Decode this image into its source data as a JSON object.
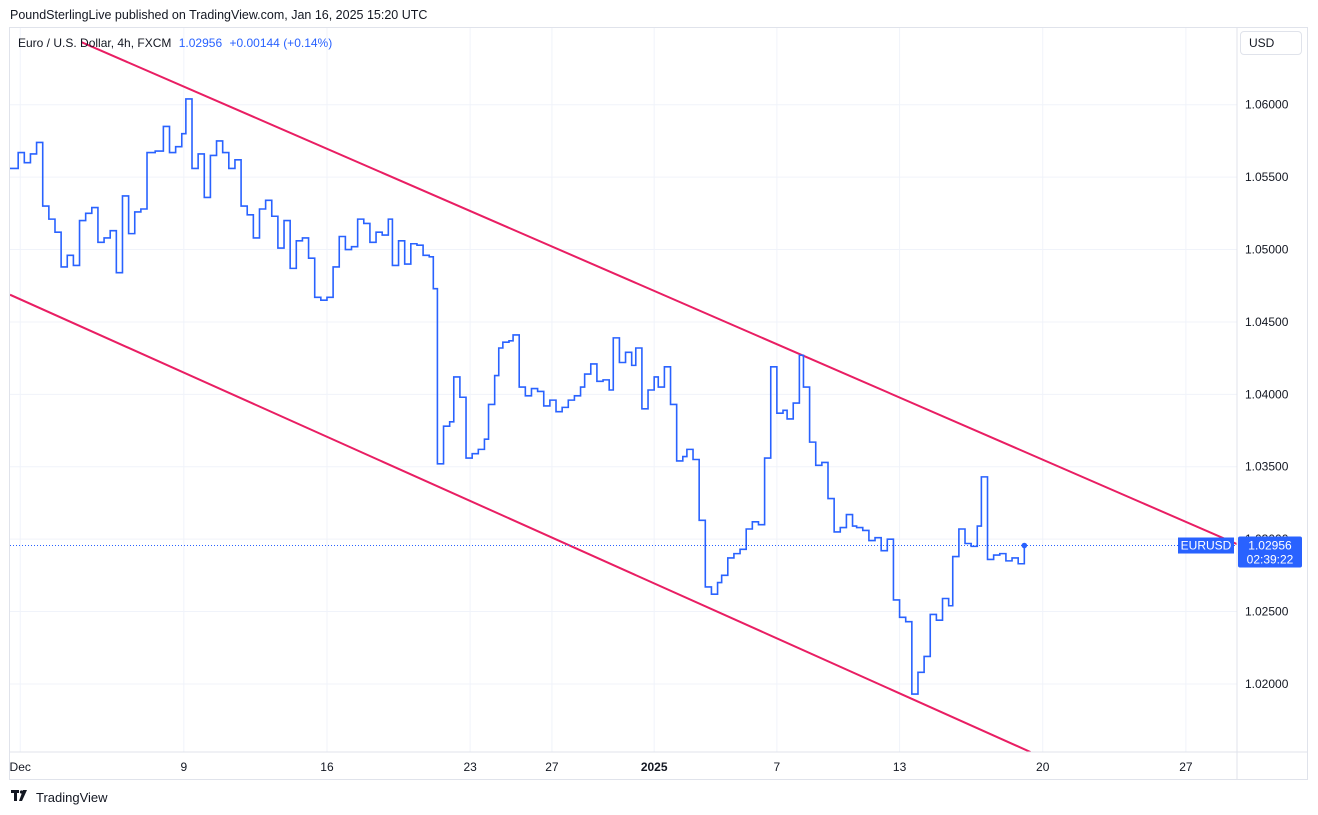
{
  "header": {
    "published": "PoundSterlingLive published on TradingView.com, Jan 16, 2025 15:20 UTC"
  },
  "legend": {
    "symbol": "Euro / U.S. Dollar, 4h, FXCM",
    "price": "1.02956",
    "change": "+0.00144 (+0.14%)"
  },
  "currency": "USD",
  "footer": {
    "brand": "TradingView",
    "logo_icon": "tradingview-logo-icon"
  },
  "colors": {
    "price_line": "#2962ff",
    "channel": "#e91e63",
    "grid": "#f0f3fa",
    "badge": "#2962ff"
  },
  "chart_data": {
    "type": "line",
    "style": "step",
    "symbol": "EURUSD",
    "x_axis": {
      "ticks": [
        {
          "label": "Dec",
          "day": 1
        },
        {
          "label": "9",
          "day": 9
        },
        {
          "label": "16",
          "day": 16
        },
        {
          "label": "23",
          "day": 23
        },
        {
          "label": "27",
          "day": 27
        },
        {
          "label": "2025",
          "day": 32,
          "bold": true
        },
        {
          "label": "7",
          "day": 38
        },
        {
          "label": "13",
          "day": 44
        },
        {
          "label": "20",
          "day": 51
        },
        {
          "label": "27",
          "day": 58
        }
      ],
      "range": [
        0.5,
        60.5
      ]
    },
    "y_axis": {
      "ticks": [
        "1.06000",
        "1.05500",
        "1.05000",
        "1.04500",
        "1.04000",
        "1.03500",
        "1.02500",
        "1.02000"
      ],
      "tick_values": [
        1.06,
        1.055,
        1.05,
        1.045,
        1.04,
        1.035,
        1.025,
        1.02
      ],
      "hidden_tick": "1.03000",
      "range": [
        1.0153,
        1.0653
      ]
    },
    "grid": true,
    "last": {
      "label": "EURUSD",
      "price": "1.02956",
      "countdown": "02:39:22",
      "value": 1.02956
    },
    "series": [
      {
        "values": [
          [
            0.5,
            1.0556
          ],
          [
            0.9,
            1.0567
          ],
          [
            1.2,
            1.056
          ],
          [
            1.5,
            1.0566
          ],
          [
            1.8,
            1.0574
          ],
          [
            2.1,
            1.053
          ],
          [
            2.4,
            1.0521
          ],
          [
            2.7,
            1.0512
          ],
          [
            3.0,
            1.0488
          ],
          [
            3.3,
            1.0496
          ],
          [
            3.6,
            1.0489
          ],
          [
            3.9,
            1.052
          ],
          [
            4.2,
            1.0525
          ],
          [
            4.5,
            1.0529
          ],
          [
            4.8,
            1.0505
          ],
          [
            5.1,
            1.0508
          ],
          [
            5.4,
            1.0513
          ],
          [
            5.7,
            1.0484
          ],
          [
            6.0,
            1.0537
          ],
          [
            6.3,
            1.0511
          ],
          [
            6.6,
            1.0526
          ],
          [
            6.9,
            1.0528
          ],
          [
            7.2,
            1.0567
          ],
          [
            7.6,
            1.0568
          ],
          [
            8.0,
            1.0585
          ],
          [
            8.3,
            1.0567
          ],
          [
            8.6,
            1.0571
          ],
          [
            8.9,
            1.058
          ],
          [
            9.1,
            1.0604
          ],
          [
            9.4,
            1.0556
          ],
          [
            9.7,
            1.0566
          ],
          [
            10.0,
            1.0536
          ],
          [
            10.3,
            1.0565
          ],
          [
            10.6,
            1.0575
          ],
          [
            10.9,
            1.0567
          ],
          [
            11.2,
            1.0556
          ],
          [
            11.5,
            1.0562
          ],
          [
            11.8,
            1.053
          ],
          [
            12.1,
            1.0524
          ],
          [
            12.4,
            1.0508
          ],
          [
            12.7,
            1.0528
          ],
          [
            13.0,
            1.0534
          ],
          [
            13.3,
            1.0523
          ],
          [
            13.6,
            1.0501
          ],
          [
            13.9,
            1.052
          ],
          [
            14.2,
            1.0487
          ],
          [
            14.5,
            1.0506
          ],
          [
            14.8,
            1.0508
          ],
          [
            15.1,
            1.0494
          ],
          [
            15.4,
            1.0467
          ],
          [
            15.7,
            1.0465
          ],
          [
            16.0,
            1.0467
          ],
          [
            16.3,
            1.0488
          ],
          [
            16.6,
            1.0509
          ],
          [
            16.9,
            1.05
          ],
          [
            17.2,
            1.0502
          ],
          [
            17.5,
            1.0521
          ],
          [
            17.8,
            1.0518
          ],
          [
            18.1,
            1.0505
          ],
          [
            18.4,
            1.0512
          ],
          [
            18.7,
            1.051
          ],
          [
            19.0,
            1.0521
          ],
          [
            19.2,
            1.0489
          ],
          [
            19.5,
            1.0506
          ],
          [
            19.8,
            1.049
          ],
          [
            20.1,
            1.0504
          ],
          [
            20.4,
            1.0503
          ],
          [
            20.7,
            1.0496
          ],
          [
            21.0,
            1.0495
          ],
          [
            21.2,
            1.0473
          ],
          [
            21.4,
            1.0352
          ],
          [
            21.7,
            1.0378
          ],
          [
            22.0,
            1.0381
          ],
          [
            22.2,
            1.0412
          ],
          [
            22.5,
            1.0398
          ],
          [
            22.8,
            1.0356
          ],
          [
            23.1,
            1.0359
          ],
          [
            23.4,
            1.0362
          ],
          [
            23.7,
            1.0369
          ],
          [
            23.9,
            1.0393
          ],
          [
            24.2,
            1.0413
          ],
          [
            24.4,
            1.0432
          ],
          [
            24.6,
            1.0436
          ],
          [
            24.9,
            1.0437
          ],
          [
            25.1,
            1.0441
          ],
          [
            25.4,
            1.0405
          ],
          [
            25.7,
            1.0399
          ],
          [
            26.0,
            1.0404
          ],
          [
            26.3,
            1.0402
          ],
          [
            26.6,
            1.0392
          ],
          [
            26.9,
            1.0396
          ],
          [
            27.2,
            1.0388
          ],
          [
            27.5,
            1.0391
          ],
          [
            27.8,
            1.0396
          ],
          [
            28.1,
            1.0399
          ],
          [
            28.4,
            1.0405
          ],
          [
            28.6,
            1.0414
          ],
          [
            28.9,
            1.0421
          ],
          [
            29.2,
            1.0409
          ],
          [
            29.5,
            1.041
          ],
          [
            29.8,
            1.0403
          ],
          [
            30.0,
            1.0439
          ],
          [
            30.3,
            1.0422
          ],
          [
            30.6,
            1.0429
          ],
          [
            30.9,
            1.042
          ],
          [
            31.1,
            1.0432
          ],
          [
            31.4,
            1.039
          ],
          [
            31.7,
            1.0403
          ],
          [
            32.0,
            1.0412
          ],
          [
            32.2,
            1.0405
          ],
          [
            32.5,
            1.0419
          ],
          [
            32.8,
            1.0393
          ],
          [
            33.1,
            1.0354
          ],
          [
            33.4,
            1.0357
          ],
          [
            33.6,
            1.0362
          ],
          [
            33.9,
            1.0355
          ],
          [
            34.2,
            1.0313
          ],
          [
            34.5,
            1.0267
          ],
          [
            34.8,
            1.0262
          ],
          [
            35.1,
            1.027
          ],
          [
            35.3,
            1.0275
          ],
          [
            35.6,
            1.0287
          ],
          [
            35.9,
            1.029
          ],
          [
            36.2,
            1.0293
          ],
          [
            36.5,
            1.0307
          ],
          [
            36.8,
            1.0312
          ],
          [
            37.1,
            1.031
          ],
          [
            37.4,
            1.0356
          ],
          [
            37.7,
            1.0419
          ],
          [
            38.0,
            1.0387
          ],
          [
            38.3,
            1.0389
          ],
          [
            38.5,
            1.0383
          ],
          [
            38.8,
            1.0394
          ],
          [
            39.1,
            1.0427
          ],
          [
            39.3,
            1.0405
          ],
          [
            39.6,
            1.0367
          ],
          [
            39.9,
            1.0351
          ],
          [
            40.2,
            1.0353
          ],
          [
            40.5,
            1.0328
          ],
          [
            40.8,
            1.0305
          ],
          [
            41.1,
            1.0308
          ],
          [
            41.4,
            1.0317
          ],
          [
            41.7,
            1.0309
          ],
          [
            41.9,
            1.0308
          ],
          [
            42.2,
            1.0306
          ],
          [
            42.5,
            1.0299
          ],
          [
            42.8,
            1.0301
          ],
          [
            43.1,
            1.0292
          ],
          [
            43.4,
            1.03
          ],
          [
            43.7,
            1.0258
          ],
          [
            44.0,
            1.0246
          ],
          [
            44.3,
            1.0243
          ],
          [
            44.6,
            1.0193
          ],
          [
            44.9,
            1.0208
          ],
          [
            45.2,
            1.0219
          ],
          [
            45.5,
            1.0248
          ],
          [
            45.8,
            1.0244
          ],
          [
            46.1,
            1.0259
          ],
          [
            46.4,
            1.0254
          ],
          [
            46.6,
            1.0288
          ],
          [
            46.9,
            1.0307
          ],
          [
            47.2,
            1.0297
          ],
          [
            47.5,
            1.0295
          ],
          [
            47.8,
            1.0309
          ],
          [
            48.0,
            1.0343
          ],
          [
            48.3,
            1.0286
          ],
          [
            48.6,
            1.0289
          ],
          [
            48.9,
            1.029
          ],
          [
            49.2,
            1.0285
          ],
          [
            49.5,
            1.0287
          ],
          [
            49.8,
            1.0283
          ],
          [
            50.1,
            1.02956
          ]
        ]
      }
    ],
    "channel_lines": [
      {
        "from": [
          4.0,
          1.06432
        ],
        "to": [
          60.5,
          1.02966
        ]
      },
      {
        "from": [
          0.5,
          1.04688
        ],
        "to": [
          50.4,
          1.0153
        ]
      }
    ]
  }
}
